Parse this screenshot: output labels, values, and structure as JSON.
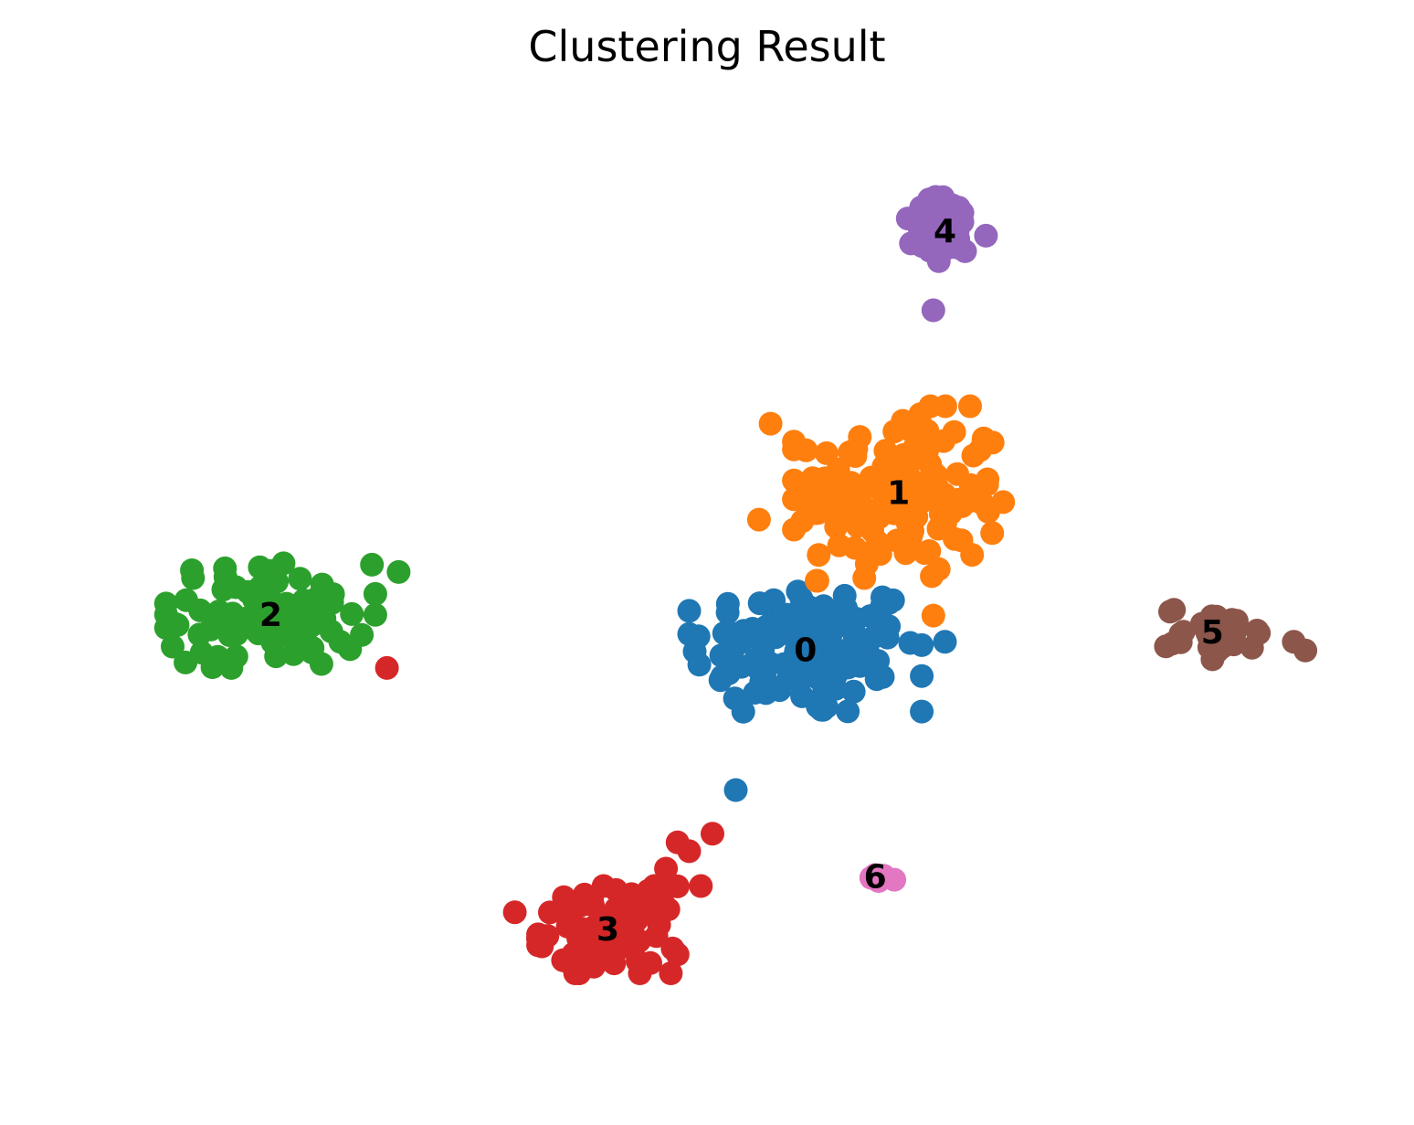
{
  "chart_data": {
    "type": "scatter",
    "title": "Clustering Result",
    "xlabel": "",
    "ylabel": "",
    "axes_visible": false,
    "grid": false,
    "legend": "on data",
    "xlim": [
      -0.05,
      1.05
    ],
    "ylim": [
      -0.05,
      1.05
    ],
    "point_size": "large",
    "series": [
      {
        "name": "0",
        "color": "#1f77b4",
        "label_pos": [
          0.58,
          0.43
        ],
        "center": [
          0.58,
          0.43
        ],
        "spread": [
          0.1,
          0.08
        ],
        "count": 130,
        "extra_points": [
          [
            0.52,
            0.27
          ],
          [
            0.68,
            0.36
          ],
          [
            0.7,
            0.44
          ]
        ]
      },
      {
        "name": "1",
        "color": "#ff7f0e",
        "label_pos": [
          0.66,
          0.61
        ],
        "center": [
          0.66,
          0.61
        ],
        "spread": [
          0.09,
          0.1
        ],
        "count": 150,
        "extra_points": [
          [
            0.54,
            0.58
          ],
          [
            0.55,
            0.69
          ],
          [
            0.69,
            0.47
          ]
        ]
      },
      {
        "name": "2",
        "color": "#2ca02c",
        "label_pos": [
          0.12,
          0.47
        ],
        "center": [
          0.12,
          0.47
        ],
        "spread": [
          0.09,
          0.06
        ],
        "count": 90,
        "extra_points": [
          [
            0.23,
            0.52
          ]
        ]
      },
      {
        "name": "3",
        "color": "#d62728",
        "label_pos": [
          0.41,
          0.11
        ],
        "center": [
          0.41,
          0.11
        ],
        "spread": [
          0.06,
          0.05
        ],
        "count": 90,
        "extra_points": [
          [
            0.22,
            0.41
          ],
          [
            0.5,
            0.22
          ],
          [
            0.48,
            0.2
          ],
          [
            0.46,
            0.18
          ],
          [
            0.45,
            0.16
          ],
          [
            0.47,
            0.21
          ],
          [
            0.49,
            0.16
          ],
          [
            0.33,
            0.13
          ]
        ]
      },
      {
        "name": "4",
        "color": "#9467bd",
        "label_pos": [
          0.7,
          0.91
        ],
        "center": [
          0.7,
          0.91
        ],
        "spread": [
          0.04,
          0.04
        ],
        "count": 40,
        "extra_points": [
          [
            0.69,
            0.82
          ]
        ]
      },
      {
        "name": "5",
        "color": "#8c564b",
        "label_pos": [
          0.93,
          0.45
        ],
        "center": [
          0.93,
          0.45
        ],
        "spread": [
          0.04,
          0.03
        ],
        "count": 35,
        "extra_points": [
          [
            1.0,
            0.44
          ],
          [
            1.01,
            0.43
          ],
          [
            0.97,
            0.45
          ]
        ]
      },
      {
        "name": "6",
        "color": "#e377c2",
        "label_pos": [
          0.64,
          0.17
        ],
        "center": [
          0.65,
          0.17
        ],
        "spread": [
          0.015,
          0.005
        ],
        "count": 6,
        "extra_points": []
      }
    ]
  }
}
